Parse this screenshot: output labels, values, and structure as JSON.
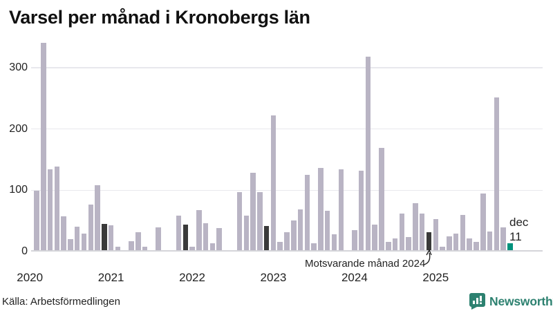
{
  "title": "Varsel per månad i Kronobergs län",
  "source": "Källa: Arbetsförmedlingen",
  "annotation": {
    "text": "Motsvarande månad 2024"
  },
  "current_label": {
    "line1": "dec",
    "line2": "11"
  },
  "logo": {
    "text": "Newsworthy"
  },
  "colors": {
    "bar": "#b9b4c4",
    "december": "#3a3a3a",
    "current": "#00927d",
    "grid": "#e8e8ed",
    "axis": "#d4d4d9",
    "text": "#222222",
    "logo": "#2d8170"
  },
  "chart_data": {
    "type": "bar",
    "title": "Varsel per månad i Kronobergs län",
    "ylabel": "",
    "xlabel": "",
    "grid": "horizontal",
    "legend": "none",
    "yticks": [
      0,
      100,
      200,
      300
    ],
    "ylim": [
      0,
      343
    ],
    "year_labels": [
      "2020",
      "2021",
      "2022",
      "2023",
      "2024",
      "2025"
    ],
    "month_span": "2020-01 to 2025-12",
    "series": [
      {
        "year": "2020",
        "values": [
          0,
          97,
          338,
          132,
          136,
          55,
          18,
          38,
          27,
          75,
          106,
          43
        ]
      },
      {
        "year": "2021",
        "values": [
          41,
          6,
          0,
          15,
          29,
          6,
          0,
          37,
          0,
          0,
          56,
          42
        ]
      },
      {
        "year": "2022",
        "values": [
          6,
          66,
          44,
          11,
          36,
          0,
          0,
          95,
          56,
          126,
          95,
          40
        ]
      },
      {
        "year": "2023",
        "values": [
          220,
          14,
          29,
          49,
          67,
          123,
          11,
          134,
          64,
          26,
          132,
          0
        ]
      },
      {
        "year": "2024",
        "values": [
          33,
          130,
          316,
          42,
          167,
          13,
          19,
          60,
          21,
          77,
          60,
          29
        ]
      },
      {
        "year": "2025",
        "values": [
          51,
          6,
          23,
          27,
          58,
          19,
          14,
          92,
          30,
          249,
          37,
          11
        ]
      }
    ],
    "highlight_rule": "december bars dark, current month (dec 2025 = 11) teal",
    "last_point": {
      "label": "dec",
      "value": 11
    }
  }
}
